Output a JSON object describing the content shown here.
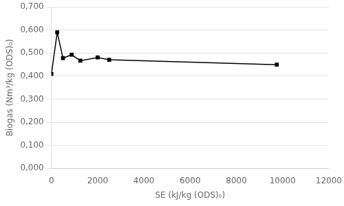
{
  "chart_data": {
    "type": "line",
    "x": [
      0,
      250,
      500,
      875,
      1250,
      2000,
      2500,
      9750
    ],
    "values": [
      0.41,
      0.59,
      0.478,
      0.493,
      0.467,
      0.481,
      0.471,
      0.45
    ],
    "xlabel": "SE (kJ/kg (ODS)₀)",
    "ylabel": "Biogas (Nm³/kg (ODS)₀)",
    "xlim": [
      0,
      12000
    ],
    "ylim": [
      0,
      0.7
    ],
    "xticks": [
      0,
      2000,
      4000,
      6000,
      8000,
      10000,
      12000
    ],
    "yticks": [
      {
        "value": 0,
        "label": "0,000"
      },
      {
        "value": 0.1,
        "label": "0,100"
      },
      {
        "value": 0.2,
        "label": "0,200"
      },
      {
        "value": 0.3,
        "label": "0,300"
      },
      {
        "value": 0.4,
        "label": "0,400"
      },
      {
        "value": 0.5,
        "label": "0,500"
      },
      {
        "value": 0.6,
        "label": "0,600"
      },
      {
        "value": 0.7,
        "label": "0,700"
      }
    ],
    "color": "#000000",
    "marker": "square",
    "grid": "y"
  }
}
